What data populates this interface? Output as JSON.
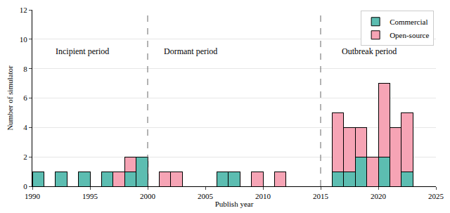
{
  "chart_data": {
    "type": "histogram",
    "x_label": "Publish year",
    "y_label": "Number of simulator",
    "bins": [
      1990,
      1991,
      1992,
      1993,
      1994,
      1995,
      1996,
      1997,
      1998,
      1999,
      2000,
      2001,
      2002,
      2003,
      2004,
      2005,
      2006,
      2007,
      2008,
      2009,
      2010,
      2011,
      2012,
      2013,
      2014,
      2015,
      2016,
      2017,
      2018,
      2019,
      2020,
      2021,
      2022,
      2023
    ],
    "series": [
      {
        "name": "Commercial",
        "color": "#5cbdb1",
        "values": [
          1,
          0,
          1,
          0,
          1,
          0,
          1,
          0,
          1,
          2,
          0,
          0,
          0,
          0,
          0,
          0,
          1,
          1,
          0,
          0,
          0,
          0,
          0,
          0,
          0,
          0,
          1,
          1,
          2,
          0,
          2,
          0,
          1
        ]
      },
      {
        "name": "Open-source",
        "color": "#f6a4b5",
        "values": [
          0,
          0,
          0,
          0,
          0,
          0,
          0,
          1,
          1,
          0,
          0,
          1,
          1,
          0,
          0,
          0,
          0,
          0,
          0,
          1,
          0,
          1,
          0,
          0,
          0,
          0,
          4,
          3,
          2,
          2,
          5,
          4,
          4
        ]
      }
    ],
    "stacked": true,
    "xlim": [
      1990,
      2025
    ],
    "xticks": [
      1990,
      1995,
      2000,
      2005,
      2010,
      2015,
      2020,
      2025
    ],
    "ylim": [
      0,
      12
    ],
    "yticks": [
      0,
      2,
      4,
      6,
      8,
      10,
      12
    ],
    "grid": true,
    "legend": "upper right",
    "vlines": [
      2000,
      2015
    ],
    "annotations": [
      {
        "text": "Incipient period",
        "x": 1994.3,
        "y": 9.2
      },
      {
        "text": "Dormant period",
        "x": 2003.7,
        "y": 9.2
      },
      {
        "text": "Outbreak period",
        "x": 2019.2,
        "y": 9.2
      }
    ]
  }
}
